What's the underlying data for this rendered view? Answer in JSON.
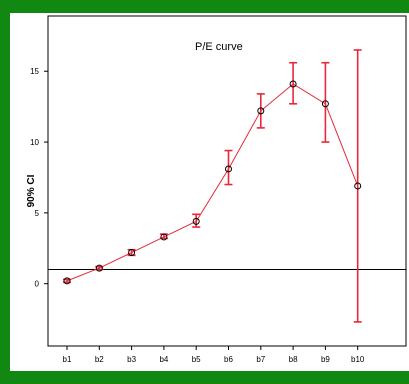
{
  "chart_data": {
    "type": "line",
    "title": "P/E curve",
    "xlabel": "",
    "ylabel": "90% CI",
    "categories": [
      "b1",
      "b2",
      "b3",
      "b4",
      "b5",
      "b6",
      "b7",
      "b8",
      "b9",
      "b10"
    ],
    "values": [
      0.2,
      1.1,
      2.2,
      3.3,
      4.4,
      8.1,
      12.2,
      14.1,
      12.7,
      6.9
    ],
    "ci_lower": [
      0.1,
      1.0,
      2.0,
      3.2,
      4.0,
      7.0,
      11.0,
      12.7,
      10.0,
      -2.7
    ],
    "ci_upper": [
      0.3,
      1.2,
      2.4,
      3.5,
      4.9,
      9.4,
      13.4,
      15.6,
      15.6,
      16.5
    ],
    "reference_line_y": 1,
    "ylim": [
      -4.4,
      18.9
    ],
    "yticks": [
      0,
      5,
      10,
      15
    ],
    "grid": false,
    "colors": {
      "series": "#e8283a",
      "marker": "#000000",
      "axis": "#000000",
      "reference": "#000000"
    }
  }
}
